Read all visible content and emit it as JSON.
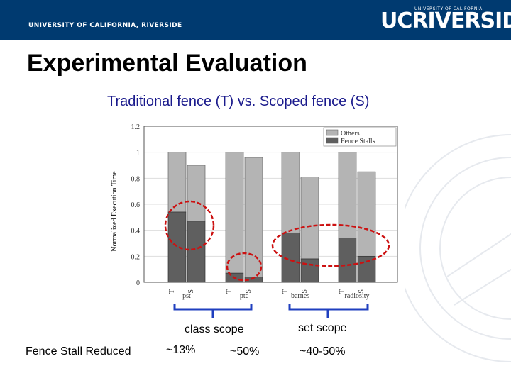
{
  "header": {
    "university_text": "UNIVERSITY OF CALIFORNIA, RIVERSIDE",
    "logo_uc": "UC",
    "logo_riverside": "RIVERSIDE",
    "logo_subtext": "UNIVERSITY OF CALIFORNIA"
  },
  "slide": {
    "title": "Experimental Evaluation",
    "subtitle": "Traditional fence (T) vs. Scoped fence (S)"
  },
  "annotations": {
    "class_scope": "class scope",
    "set_scope": "set scope",
    "row_label": "Fence Stall Reduced",
    "v1": "~13%",
    "v2": "~50%",
    "v3": "~40-50%"
  },
  "colors": {
    "header_bg": "#003a70",
    "others": "#b4b4b4",
    "fence_stalls": "#5f5f5f",
    "annotation": "#cc1111",
    "brace": "#1f3fbf"
  },
  "chart_data": {
    "type": "bar",
    "stacked": true,
    "ylabel": "Normalized Execution Time",
    "ylim": [
      0,
      1.2
    ],
    "yticks": [
      "0",
      "0.2",
      "0.4",
      "0.6",
      "0.8",
      "1",
      "1.2"
    ],
    "groups": [
      "pst",
      "ptc",
      "barnes",
      "radiosity"
    ],
    "bar_labels": [
      "T",
      "S"
    ],
    "legend": {
      "position": "top-right",
      "entries": [
        "Others",
        "Fence Stalls"
      ]
    },
    "bars": [
      {
        "group": "pst",
        "label": "T",
        "fence_stalls": 0.54,
        "total": 1.0
      },
      {
        "group": "pst",
        "label": "S",
        "fence_stalls": 0.47,
        "total": 0.9
      },
      {
        "group": "ptc",
        "label": "T",
        "fence_stalls": 0.07,
        "total": 1.0
      },
      {
        "group": "ptc",
        "label": "S",
        "fence_stalls": 0.04,
        "total": 0.96
      },
      {
        "group": "barnes",
        "label": "T",
        "fence_stalls": 0.38,
        "total": 1.0
      },
      {
        "group": "barnes",
        "label": "S",
        "fence_stalls": 0.18,
        "total": 0.81
      },
      {
        "group": "radiosity",
        "label": "T",
        "fence_stalls": 0.34,
        "total": 1.0
      },
      {
        "group": "radiosity",
        "label": "S",
        "fence_stalls": 0.2,
        "total": 0.85
      }
    ]
  }
}
